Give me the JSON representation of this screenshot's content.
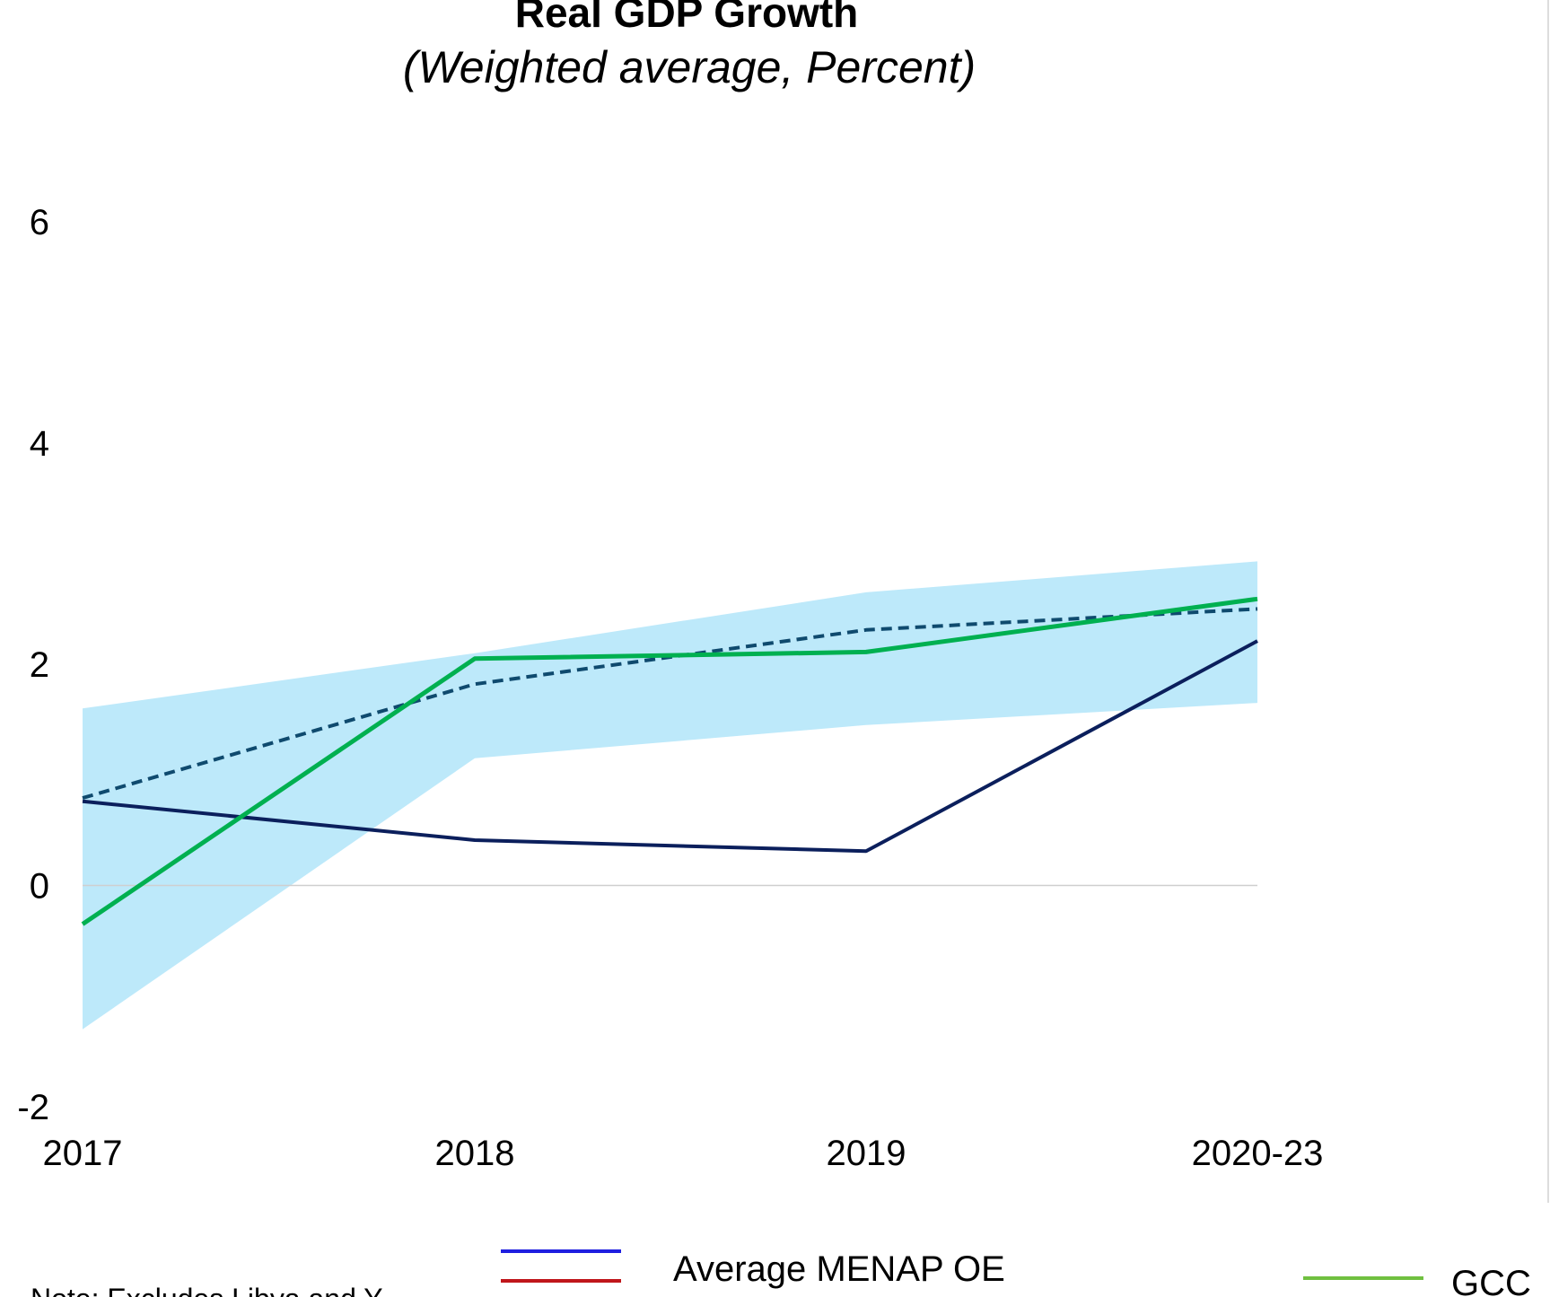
{
  "chart_data": {
    "type": "line",
    "title": "Real GDP Growth",
    "subtitle": "(Weighted average, Percent)",
    "xlabel": "",
    "ylabel": "",
    "categories": [
      "2017",
      "2018",
      "2019",
      "2020-23"
    ],
    "ylim": [
      -2,
      6
    ],
    "yticks": [
      "-2",
      "0",
      "2",
      "4",
      "6"
    ],
    "grid": false,
    "band": {
      "lower": [
        -1.3,
        1.15,
        1.45,
        1.65
      ],
      "upper": [
        1.6,
        2.1,
        2.65,
        2.93
      ],
      "color": "#bde9fa"
    },
    "series": [
      {
        "key": "navy_solid",
        "values": [
          0.76,
          0.41,
          0.31,
          2.21
        ],
        "color": "#0b1f5c",
        "style": "solid"
      },
      {
        "key": "dashed",
        "values": [
          0.79,
          1.82,
          2.31,
          2.5
        ],
        "color": "#0f4a6e",
        "style": "dashed"
      },
      {
        "key": "green_solid",
        "values": [
          -0.35,
          2.05,
          2.11,
          2.59
        ],
        "color": "#00b050",
        "style": "solid"
      }
    ],
    "legend": {
      "placement": "bottom",
      "entries": [
        {
          "label": "Average MENAP OE",
          "color": "#1f1fe0"
        },
        {
          "label": "",
          "color": "#c0161b"
        },
        {
          "label": "GCC",
          "color": "#70c040"
        }
      ]
    },
    "note": "Note: Excludes Libya and Y..."
  }
}
